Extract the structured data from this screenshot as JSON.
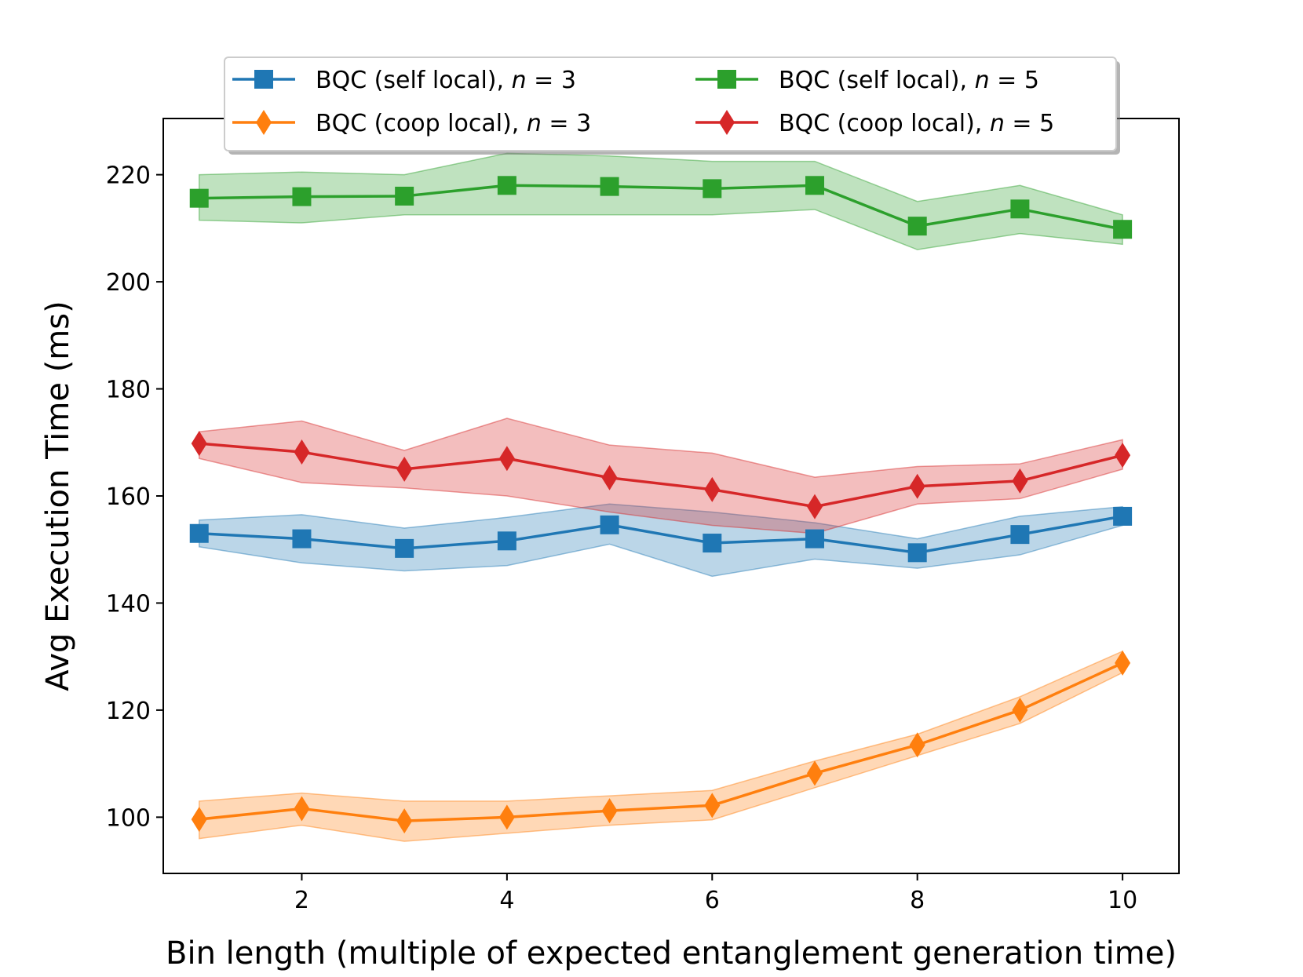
{
  "chart_data": {
    "type": "line",
    "title": "",
    "xlabel": "Bin length (multiple of expected entanglement generation time)",
    "ylabel": "Avg Execution Time (ms)",
    "xlim": [
      0.65,
      10.55
    ],
    "ylim": [
      89.5,
      230.5
    ],
    "xticks": [
      2,
      4,
      6,
      8,
      10
    ],
    "yticks": [
      100,
      120,
      140,
      160,
      180,
      200,
      220
    ],
    "grid": false,
    "legend_position": "top-center",
    "x": [
      1,
      2,
      3,
      4,
      5,
      6,
      7,
      8,
      9,
      10
    ],
    "series": [
      {
        "name": "BQC (self local), ",
        "name_var": "n",
        "name_value": " = 3",
        "color": "#1f77b4",
        "marker": "square",
        "values": [
          153,
          152,
          150.2,
          151.6,
          154.6,
          151.2,
          152,
          149.4,
          152.8,
          156.2
        ],
        "lower": [
          150.5,
          147.5,
          146,
          147,
          151,
          145,
          148.2,
          146.5,
          149,
          154.5
        ],
        "upper": [
          155.5,
          156.5,
          154,
          156,
          158.5,
          157,
          155,
          152,
          156.2,
          158
        ]
      },
      {
        "name": "BQC (coop local), ",
        "name_var": "n",
        "name_value": " = 3",
        "color": "#ff7f0e",
        "marker": "diamond",
        "values": [
          99.6,
          101.6,
          99.3,
          100,
          101.2,
          102.2,
          108.2,
          113.5,
          120,
          128.8
        ],
        "lower": [
          96,
          98.5,
          95.5,
          97,
          98.5,
          99.5,
          105.5,
          111.5,
          117.5,
          127
        ],
        "upper": [
          103,
          104.5,
          103,
          103,
          104,
          105,
          110.5,
          115.5,
          122.5,
          131
        ]
      },
      {
        "name": "BQC (self local), ",
        "name_var": "n",
        "name_value": " = 5",
        "color": "#2ca02c",
        "marker": "square",
        "values": [
          215.6,
          215.9,
          216,
          218,
          217.8,
          217.4,
          218,
          210.4,
          213.6,
          209.8
        ],
        "lower": [
          211.5,
          211,
          212.5,
          212.5,
          212.5,
          212.5,
          213.5,
          206,
          209,
          207
        ],
        "upper": [
          220,
          220.5,
          220,
          224,
          223.5,
          222.5,
          222.5,
          215,
          218,
          212.5
        ]
      },
      {
        "name": "BQC (coop local), ",
        "name_var": "n",
        "name_value": " = 5",
        "color": "#d62728",
        "marker": "diamond",
        "values": [
          169.8,
          168.2,
          165,
          167,
          163.4,
          161.2,
          158,
          161.8,
          162.8,
          167.6
        ],
        "lower": [
          167,
          162.5,
          161.5,
          160,
          157,
          154.5,
          153,
          158.5,
          159.5,
          165
        ],
        "upper": [
          172,
          174,
          168.5,
          174.5,
          169.5,
          168,
          163.5,
          165.5,
          166,
          170.5
        ]
      }
    ]
  }
}
